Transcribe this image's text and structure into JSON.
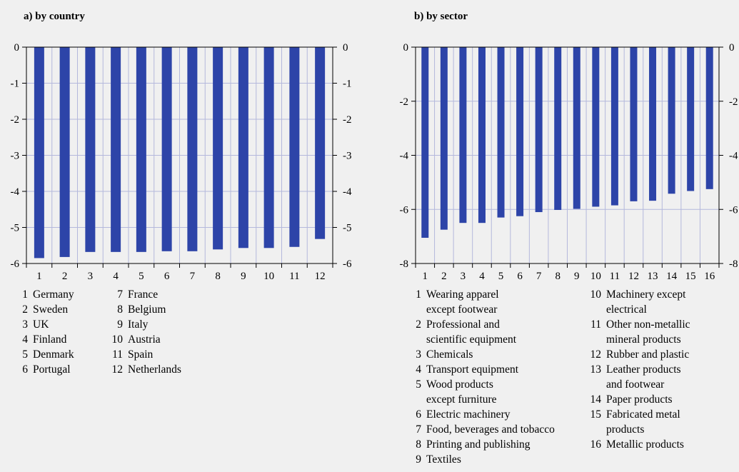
{
  "chart_data": [
    {
      "type": "bar",
      "title": "a) by country",
      "categories": [
        "1",
        "2",
        "3",
        "4",
        "5",
        "6",
        "7",
        "8",
        "9",
        "10",
        "11",
        "12"
      ],
      "values": [
        -5.85,
        -5.82,
        -5.68,
        -5.68,
        -5.68,
        -5.66,
        -5.66,
        -5.61,
        -5.57,
        -5.57,
        -5.54,
        -5.32
      ],
      "ylim": [
        -6,
        0
      ],
      "yticks": [
        0,
        -1,
        -2,
        -3,
        -4,
        -5,
        -6
      ],
      "grid": true,
      "bar_color": "#2d44a8",
      "legend": [
        {
          "num": "1",
          "label": "Germany"
        },
        {
          "num": "2",
          "label": "Sweden"
        },
        {
          "num": "3",
          "label": "UK"
        },
        {
          "num": "4",
          "label": "Finland"
        },
        {
          "num": "5",
          "label": "Denmark"
        },
        {
          "num": "6",
          "label": "Portugal"
        },
        {
          "num": "7",
          "label": "France"
        },
        {
          "num": "8",
          "label": "Belgium"
        },
        {
          "num": "9",
          "label": "Italy"
        },
        {
          "num": "10",
          "label": "Austria"
        },
        {
          "num": "11",
          "label": "Spain"
        },
        {
          "num": "12",
          "label": "Netherlands"
        }
      ]
    },
    {
      "type": "bar",
      "title": "b) by sector",
      "categories": [
        "1",
        "2",
        "3",
        "4",
        "5",
        "6",
        "7",
        "8",
        "9",
        "10",
        "11",
        "12",
        "13",
        "14",
        "15",
        "16"
      ],
      "values": [
        -7.05,
        -6.75,
        -6.5,
        -6.5,
        -6.3,
        -6.25,
        -6.1,
        -6.02,
        -5.98,
        -5.9,
        -5.85,
        -5.7,
        -5.68,
        -5.42,
        -5.32,
        -5.25
      ],
      "ylim": [
        -8,
        0
      ],
      "yticks": [
        0,
        -2,
        -4,
        -6,
        -8
      ],
      "grid": true,
      "bar_color": "#2d44a8",
      "legend": [
        {
          "num": "1",
          "lines": [
            "Wearing apparel",
            "except footwear"
          ]
        },
        {
          "num": "2",
          "lines": [
            "Professional and",
            "scientific equipment"
          ]
        },
        {
          "num": "3",
          "lines": [
            "Chemicals"
          ]
        },
        {
          "num": "4",
          "lines": [
            "Transport equipment"
          ]
        },
        {
          "num": "5",
          "lines": [
            "Wood products",
            "except furniture"
          ]
        },
        {
          "num": "6",
          "lines": [
            "Electric machinery"
          ]
        },
        {
          "num": "7",
          "lines": [
            "Food, beverages and tobacco"
          ]
        },
        {
          "num": "8",
          "lines": [
            "Printing and publishing"
          ]
        },
        {
          "num": "9",
          "lines": [
            "Textiles"
          ]
        },
        {
          "num": "10",
          "lines": [
            "Machinery except",
            "electrical"
          ]
        },
        {
          "num": "11",
          "lines": [
            "Other non-metallic",
            "mineral products"
          ]
        },
        {
          "num": "12",
          "lines": [
            "Rubber and plastic"
          ]
        },
        {
          "num": "13",
          "lines": [
            "Leather products",
            "and footwear"
          ]
        },
        {
          "num": "14",
          "lines": [
            "Paper products"
          ]
        },
        {
          "num": "15",
          "lines": [
            "Fabricated metal",
            "products"
          ]
        },
        {
          "num": "16",
          "lines": [
            "Metallic products"
          ]
        }
      ]
    }
  ]
}
